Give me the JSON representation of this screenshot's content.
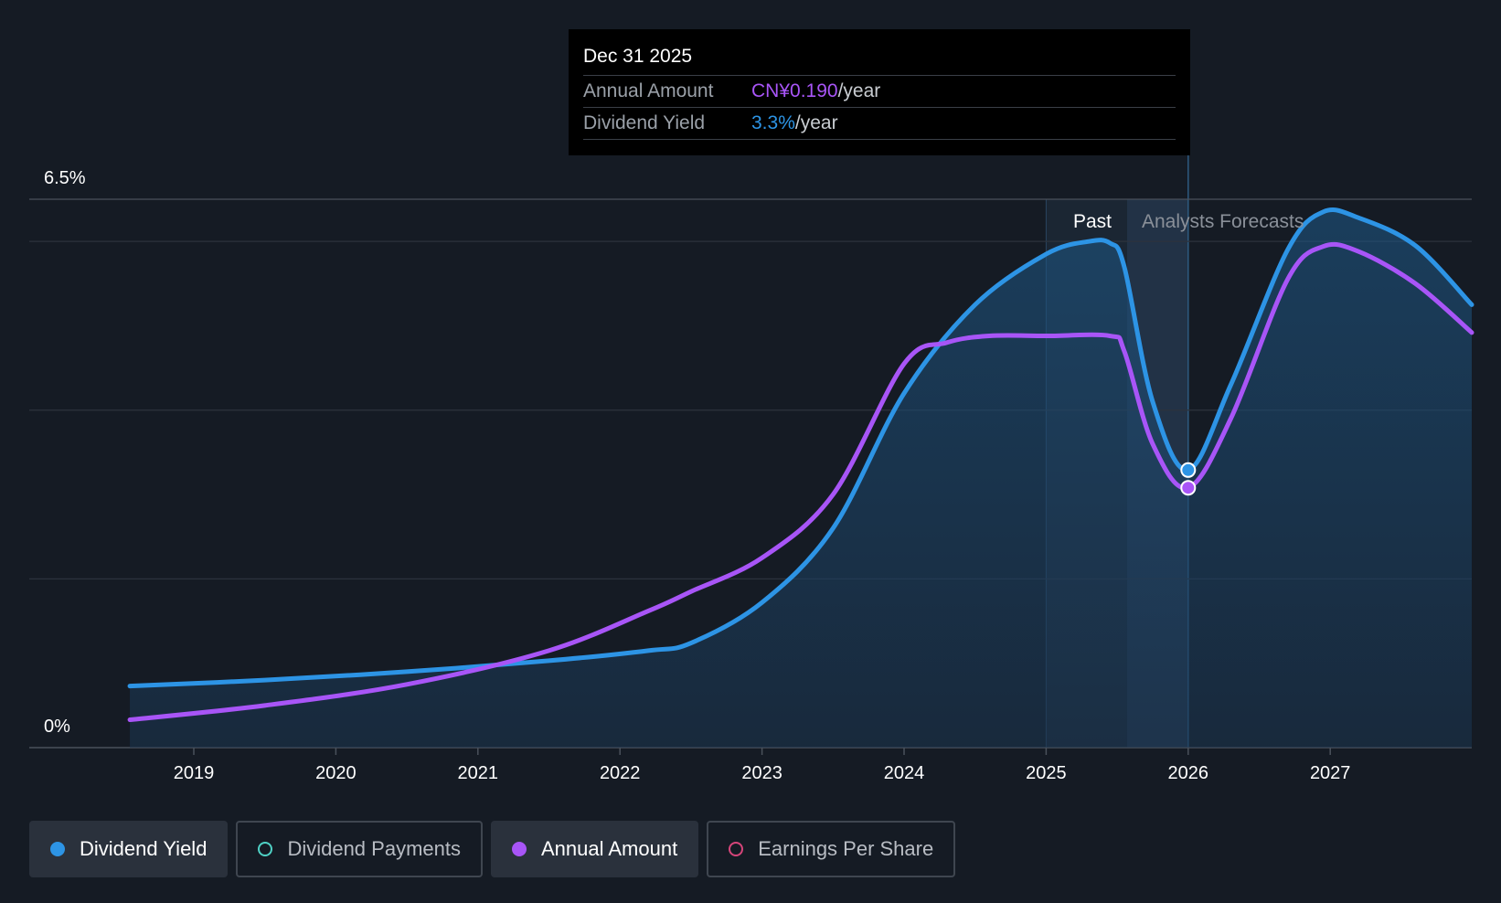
{
  "chart_data": {
    "type": "line",
    "y_axis": {
      "top_label": "6.5%",
      "bottom_label": "0%",
      "ylim": [
        0,
        6.5
      ],
      "unit": "%"
    },
    "x_axis": {
      "ticks": [
        "2019",
        "2020",
        "2021",
        "2022",
        "2023",
        "2024",
        "2025",
        "2026",
        "2027"
      ],
      "xlim": [
        2018.15,
        2028.0
      ]
    },
    "regions": {
      "past_label": "Past",
      "forecast_label": "Analysts Forecasts",
      "past_start": 2025.0,
      "past_end": 2025.57,
      "forecast_end": 2026.0
    },
    "series": [
      {
        "name": "Dividend Yield",
        "color": "#2d94e5",
        "filled": true,
        "x": [
          2018.55,
          2019.5,
          2020.5,
          2021.5,
          2022.2,
          2022.5,
          2023.0,
          2023.5,
          2024.0,
          2024.5,
          2025.0,
          2025.3,
          2025.45,
          2025.55,
          2025.75,
          2026.0,
          2026.3,
          2026.7,
          2026.95,
          2027.2,
          2027.6,
          2028.0
        ],
        "values": [
          0.73,
          0.8,
          0.9,
          1.03,
          1.15,
          1.24,
          1.72,
          2.6,
          4.2,
          5.25,
          5.85,
          6.0,
          5.98,
          5.7,
          4.1,
          3.29,
          4.3,
          5.9,
          6.35,
          6.28,
          5.95,
          5.25
        ]
      },
      {
        "name": "Annual Amount",
        "color": "#a855f7",
        "filled": false,
        "x": [
          2018.55,
          2019.5,
          2020.5,
          2021.5,
          2022.2,
          2022.5,
          2023.0,
          2023.5,
          2024.0,
          2024.3,
          2024.6,
          2025.0,
          2025.45,
          2025.55,
          2025.75,
          2026.0,
          2026.3,
          2026.7,
          2026.95,
          2027.2,
          2027.6,
          2028.0
        ],
        "values": [
          0.33,
          0.5,
          0.75,
          1.15,
          1.62,
          1.85,
          2.25,
          3.0,
          4.55,
          4.8,
          4.88,
          4.88,
          4.88,
          4.7,
          3.6,
          3.08,
          3.9,
          5.55,
          5.94,
          5.88,
          5.5,
          4.92
        ]
      }
    ],
    "tooltip": {
      "date": "Dec 31 2025",
      "x": 2026.0,
      "rows": [
        {
          "label": "Annual Amount",
          "value": "CN¥0.190",
          "unit": "/year",
          "color": "#a855f7"
        },
        {
          "label": "Dividend Yield",
          "value": "3.3%",
          "unit": "/year",
          "color": "#2d94e5"
        }
      ]
    },
    "highlight_points": [
      {
        "series": "Dividend Yield",
        "x": 2026.0,
        "y": 3.29
      },
      {
        "series": "Annual Amount",
        "x": 2026.0,
        "y": 3.08
      }
    ]
  },
  "legend": [
    {
      "label": "Dividend Yield",
      "color": "#2d94e5",
      "active": true,
      "filled": true
    },
    {
      "label": "Dividend Payments",
      "color": "#4fd1c5",
      "active": false,
      "filled": false
    },
    {
      "label": "Annual Amount",
      "color": "#a855f7",
      "active": true,
      "filled": true
    },
    {
      "label": "Earnings Per Share",
      "color": "#d6457a",
      "active": false,
      "filled": false
    }
  ]
}
